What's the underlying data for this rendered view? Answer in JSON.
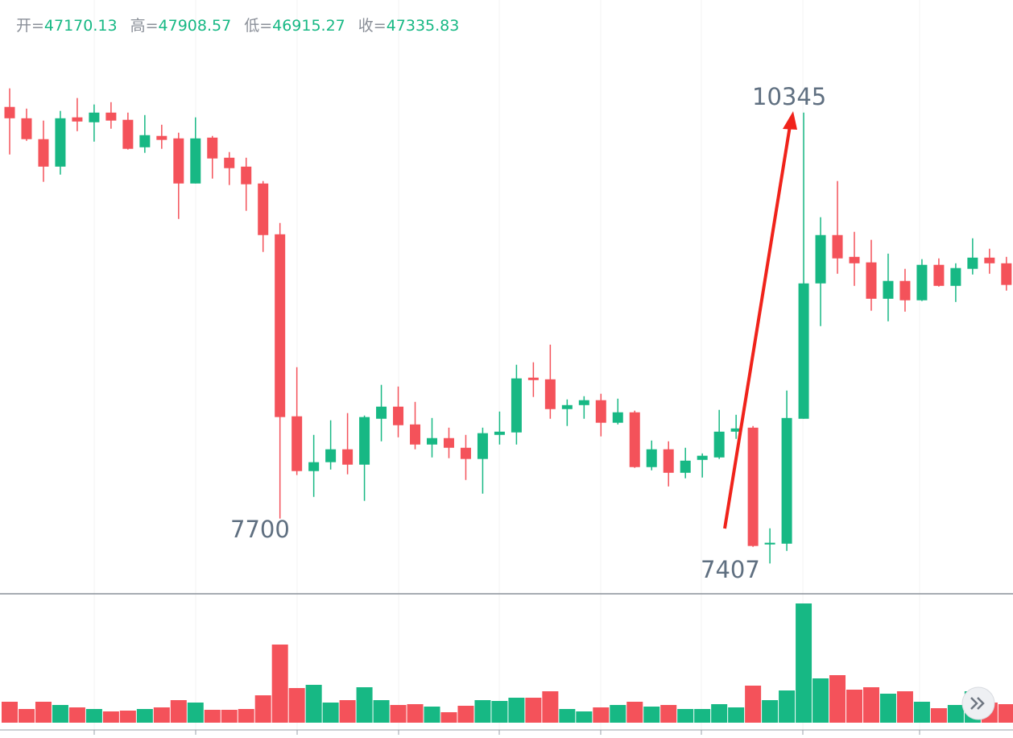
{
  "header": [
    {
      "label": "开=",
      "value": 47170.13
    },
    {
      "label": "高=",
      "value": 47908.57
    },
    {
      "label": "低=",
      "value": 46915.27
    },
    {
      "label": "收=",
      "value": 47335.83
    }
  ],
  "chart_data": {
    "type": "candlestick",
    "up_color": "#17b884",
    "down_color": "#f4525a",
    "ylim": [
      7220,
      10790
    ],
    "volume_lim": [
      0,
      150
    ],
    "annotations": [
      {
        "text": "10345"
      },
      {
        "text": "7700"
      },
      {
        "text": "7407"
      }
    ],
    "open": [
      10382,
      10308,
      10172,
      9993,
      10314,
      10282,
      10345,
      10298,
      10119,
      10193,
      10177,
      9883,
      10182,
      10051,
      9993,
      9883,
      9552,
      8366,
      8009,
      8067,
      8151,
      8051,
      8350,
      8429,
      8313,
      8182,
      8224,
      8161,
      8088,
      8245,
      8261,
      8618,
      8607,
      8413,
      8439,
      8471,
      8324,
      8392,
      8035,
      8151,
      7998,
      8082,
      8098,
      8266,
      8292,
      7531,
      7536,
      8350,
      9232,
      9547,
      9405,
      9369,
      9132,
      9248,
      9122,
      9353,
      9216,
      9327,
      9400,
      9363
    ],
    "high": [
      10503,
      10371,
      10293,
      10356,
      10440,
      10398,
      10413,
      10345,
      10329,
      10266,
      10214,
      10314,
      10193,
      10088,
      10051,
      9899,
      9626,
      8686,
      8245,
      8340,
      8387,
      8371,
      8571,
      8560,
      8460,
      8355,
      8292,
      8245,
      8292,
      8397,
      8702,
      8718,
      8833,
      8476,
      8497,
      8513,
      8481,
      8403,
      8208,
      8203,
      8161,
      8124,
      8408,
      8376,
      8303,
      7636,
      8534,
      10345,
      9663,
      9899,
      9568,
      9516,
      9426,
      9327,
      9390,
      9395,
      9363,
      9526,
      9458,
      9405
    ],
    "low": [
      10072,
      10161,
      9894,
      9941,
      10224,
      10156,
      10240,
      10104,
      10083,
      10109,
      9652,
      9883,
      9915,
      9873,
      9705,
      9437,
      7700,
      7983,
      7841,
      8019,
      7988,
      7815,
      8203,
      8229,
      8151,
      8098,
      8093,
      7951,
      7862,
      8182,
      8182,
      8492,
      8350,
      8303,
      8350,
      8235,
      8313,
      8030,
      8014,
      7909,
      7962,
      7967,
      8088,
      8219,
      7515,
      7407,
      7489,
      8350,
      8954,
      9295,
      9216,
      9054,
      8985,
      9048,
      9117,
      9211,
      9111,
      9290,
      9295,
      9185
    ],
    "close": [
      10308,
      10172,
      9993,
      10308,
      10287,
      10345,
      10293,
      10109,
      10198,
      10167,
      9883,
      10177,
      10046,
      9983,
      9878,
      9547,
      8361,
      8009,
      8067,
      8151,
      8051,
      8361,
      8429,
      8308,
      8182,
      8224,
      8161,
      8088,
      8256,
      8266,
      8613,
      8602,
      8413,
      8439,
      8471,
      8324,
      8392,
      8035,
      8151,
      7998,
      8077,
      8109,
      8266,
      8287,
      7521,
      7542,
      8355,
      9232,
      9547,
      9395,
      9363,
      9132,
      9248,
      9122,
      9353,
      9216,
      9332,
      9400,
      9363,
      9222
    ],
    "volume": [
      26,
      17,
      26,
      22,
      19,
      17,
      14,
      15,
      17,
      19,
      28,
      25,
      16,
      16,
      17,
      34,
      97,
      43,
      47,
      25,
      28,
      44,
      28,
      22,
      23,
      20,
      13,
      21,
      28,
      27,
      31,
      31,
      39,
      17,
      14,
      19,
      22,
      26,
      20,
      22,
      17,
      17,
      23,
      19,
      46,
      28,
      40,
      148,
      55,
      59,
      41,
      44,
      36,
      39,
      26,
      18,
      22,
      39,
      25,
      23
    ]
  }
}
